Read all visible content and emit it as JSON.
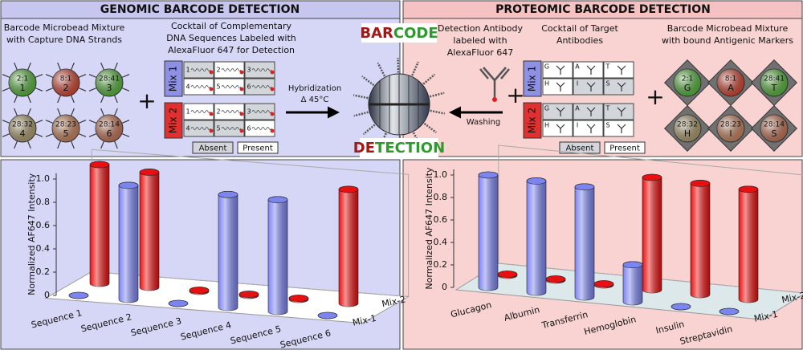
{
  "genomic": {
    "title": "GENOMIC BARCODE DETECTION",
    "bead_caption": [
      "Barcode Microbead Mixture",
      "with Capture DNA Strands"
    ],
    "beads": [
      {
        "ratio": "2:1",
        "id": "1"
      },
      {
        "ratio": "8:1",
        "id": "2"
      },
      {
        "ratio": "28:41",
        "id": "3"
      },
      {
        "ratio": "28:32",
        "id": "4"
      },
      {
        "ratio": "28:23",
        "id": "5"
      },
      {
        "ratio": "28:14",
        "id": "6"
      }
    ],
    "cocktail_caption": [
      "Cocktail of Complementary",
      "DNA Sequences Labeled with",
      "AlexaFluor 647 for Detection"
    ],
    "mixes": [
      "Mix 1",
      "Mix 2"
    ],
    "cells": [
      "1",
      "2",
      "3",
      "4",
      "5",
      "6"
    ],
    "legend": [
      "Absent",
      "Present"
    ],
    "arrow": [
      "Hybridization",
      "Δ 45°C"
    ]
  },
  "center": {
    "barcode": [
      "BAR",
      "CODE"
    ],
    "detection": [
      "DE",
      "TECTION"
    ]
  },
  "proteomic": {
    "title": "PROTEOMIC BARCODE DETECTION",
    "antibody_caption": [
      "Detection Antibody",
      "labeled with",
      "AlexaFluor 647"
    ],
    "arrow": "Washing",
    "cocktail_caption": [
      "Cocktail of Target",
      "Antibodies"
    ],
    "mixes": [
      "Mix 1",
      "Mix 2"
    ],
    "cells": [
      "G",
      "A",
      "T",
      "H",
      "I",
      "S"
    ],
    "legend": [
      "Absent",
      "Present"
    ],
    "bead_caption": [
      "Barcode Microbead Mixture",
      "with bound Antigenic Markers"
    ],
    "beads": [
      {
        "ratio": "2:1",
        "id": "G"
      },
      {
        "ratio": "8:1",
        "id": "A"
      },
      {
        "ratio": "28:41",
        "id": "T"
      },
      {
        "ratio": "28:32",
        "id": "H"
      },
      {
        "ratio": "28:23",
        "id": "I"
      },
      {
        "ratio": "28:14",
        "id": "S"
      }
    ]
  },
  "chart_data": [
    {
      "type": "bar",
      "y_label": "Normalized AF647 Intensity",
      "categories": [
        "Sequence 1",
        "Sequence 2",
        "Sequence 3",
        "Sequence 4",
        "Sequence 5",
        "Sequence 6"
      ],
      "series": [
        {
          "name": "Mix-1",
          "color": "#7c84f0",
          "values": [
            0,
            0.98,
            0,
            0.97,
            0.96,
            0
          ]
        },
        {
          "name": "Mix-2",
          "color": "#e81010",
          "values": [
            1.02,
            0.99,
            0.01,
            0.01,
            0.01,
            0.98
          ]
        }
      ],
      "ylim": [
        0,
        1.05
      ],
      "yticks": [
        0,
        0.2,
        0.4,
        0.6,
        0.8,
        {
          "value": 1,
          "label": "1.0"
        }
      ]
    },
    {
      "type": "bar",
      "y_label": "Normalized AF647 Intensity",
      "categories": [
        "Glucagon",
        "Albumin",
        "Transferrin",
        "Hemoglobin",
        "Insulin",
        "Streptavidin"
      ],
      "series": [
        {
          "name": "Mix-1",
          "color": "#7c84f0",
          "values": [
            1.0,
            0.99,
            0.98,
            0.33,
            0,
            0
          ]
        },
        {
          "name": "Mix-2",
          "color": "#e81010",
          "values": [
            0.01,
            0.01,
            0.01,
            1.0,
            0.99,
            0.98
          ]
        }
      ],
      "ylim": [
        0,
        1.05
      ],
      "yticks": [
        0,
        0.2,
        0.4,
        0.6,
        0.8,
        {
          "value": 1,
          "label": "1.0"
        }
      ]
    }
  ]
}
